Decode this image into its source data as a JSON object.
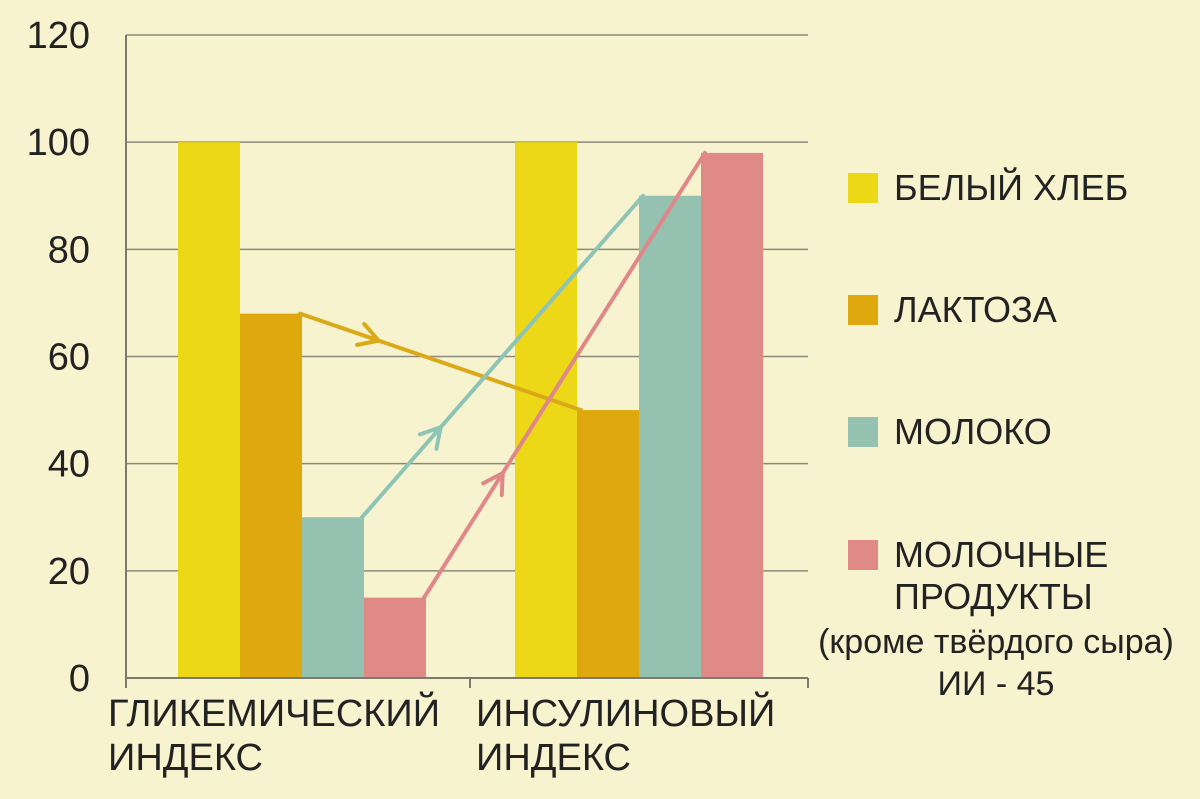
{
  "chart_data": {
    "type": "bar",
    "categories": [
      "ГЛИКЕМИЧЕСКИЙ ИНДЕКС",
      "ИНСУЛИНОВЫЙ ИНДЕКС"
    ],
    "category_lines": [
      [
        "ГЛИКЕМИЧЕСКИЙ",
        "ИНДЕКС"
      ],
      [
        "ИНСУЛИНОВЫЙ",
        "ИНДЕКС"
      ]
    ],
    "series": [
      {
        "name": "БЕЛЫЙ ХЛЕБ",
        "color": "#ecd816",
        "values": [
          100,
          100
        ]
      },
      {
        "name": "ЛАКТОЗА",
        "color": "#dfa80e",
        "values": [
          68,
          50
        ]
      },
      {
        "name": "МОЛОКО",
        "color": "#95c1b1",
        "values": [
          30,
          90
        ]
      },
      {
        "name": "МОЛОЧНЫЕ ПРОДУКТЫ",
        "color": "#e08a88",
        "values": [
          15,
          98
        ]
      }
    ],
    "ylim": [
      0,
      120
    ],
    "yticks": [
      0,
      20,
      40,
      60,
      80,
      100,
      120
    ],
    "grid": true,
    "legend_position": "right",
    "arrows": [
      {
        "series": "ЛАКТОЗА",
        "color": "#d9a918"
      },
      {
        "series": "МОЛОКО",
        "color": "#8ec4b6"
      },
      {
        "series": "МОЛОЧНЫЕ ПРОДУКТЫ",
        "color": "#e0878a"
      }
    ]
  },
  "legend": {
    "items": [
      {
        "label": "БЕЛЫЙ ХЛЕБ",
        "color": "#ecd816"
      },
      {
        "label": "ЛАКТОЗА",
        "color": "#dfa80e"
      },
      {
        "label": "МОЛОКО",
        "color": "#95c1b1"
      },
      {
        "label": "МОЛОЧНЫЕ\nПРОДУКТЫ",
        "color": "#e08a88"
      }
    ],
    "note_line1": "(кроме твёрдого сыра)",
    "note_line2": "ИИ - 45"
  }
}
